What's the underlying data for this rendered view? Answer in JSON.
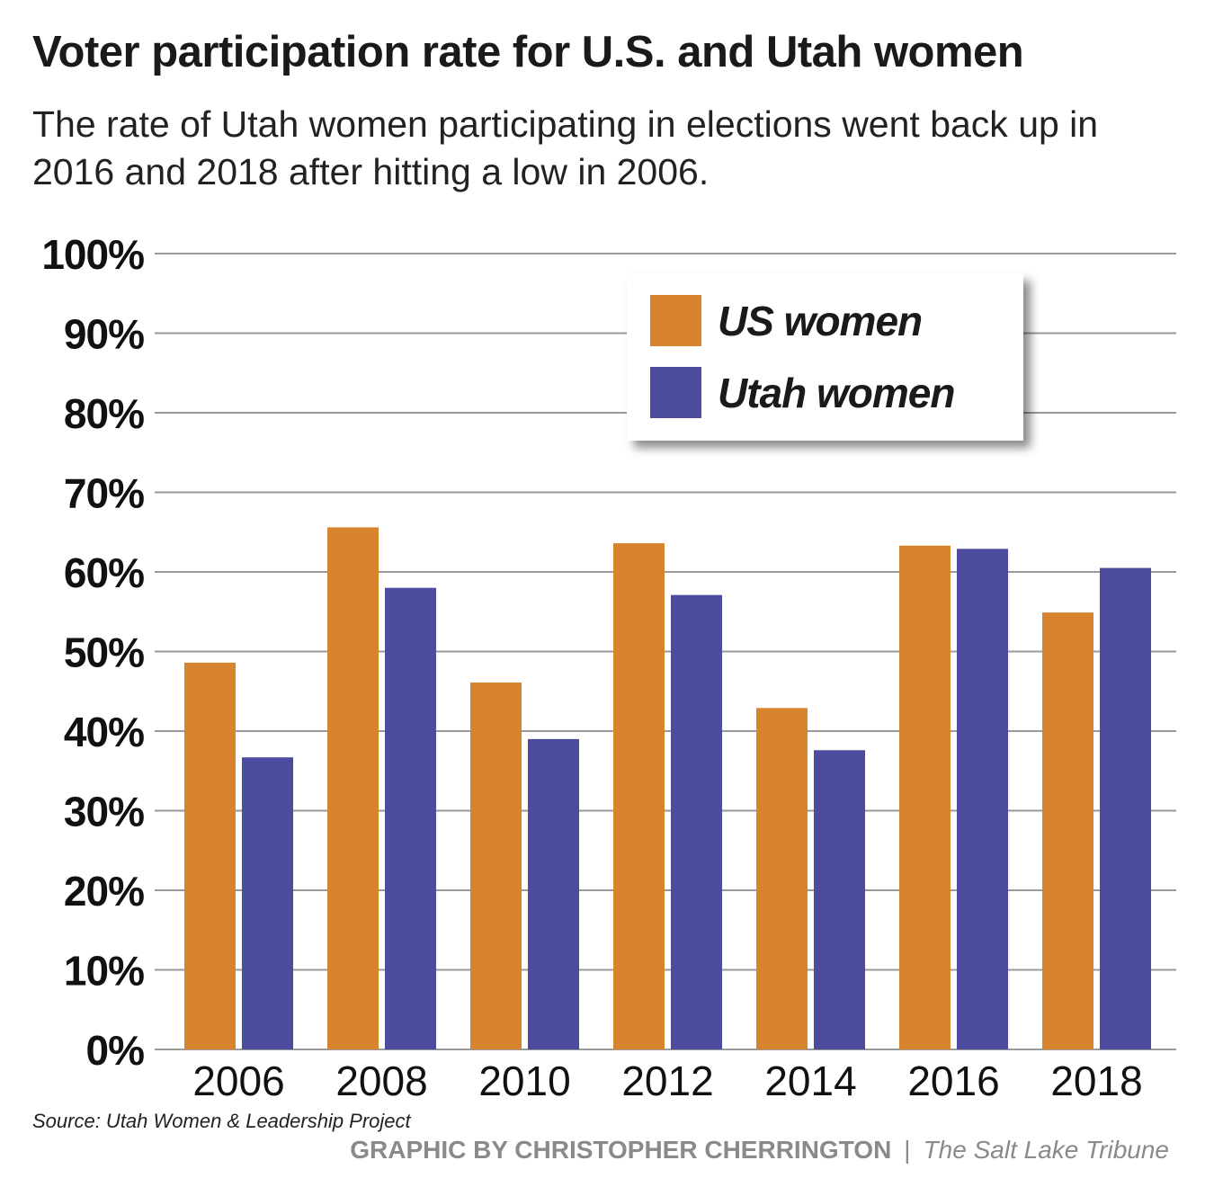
{
  "title": "Voter participation rate for U.S. and Utah women",
  "subtitle": "The rate of Utah women participating in elections went back up in 2016 and 2018 after hitting a low in 2006.",
  "source": "Source: Utah Women & Leadership Project",
  "credit": "GRAPHIC BY CHRISTOPHER CHERRINGTON",
  "separator": "|",
  "publisher": "The Salt Lake Tribune",
  "colors": {
    "us": "#D8832E",
    "utah": "#4C4B9E",
    "grid": "#9a9a9a"
  },
  "chart_data": {
    "type": "bar",
    "categories": [
      "2006",
      "2008",
      "2010",
      "2012",
      "2014",
      "2016",
      "2018"
    ],
    "series": [
      {
        "name": "US women",
        "values": [
          48.6,
          65.6,
          46.1,
          63.6,
          42.9,
          63.3,
          54.9
        ]
      },
      {
        "name": "Utah women",
        "values": [
          36.7,
          58.0,
          39.0,
          57.1,
          37.6,
          62.9,
          60.5
        ]
      }
    ],
    "yticks": [
      "0%",
      "10%",
      "20%",
      "30%",
      "40%",
      "50%",
      "60%",
      "70%",
      "80%",
      "90%",
      "100%"
    ],
    "ylim": [
      0,
      100
    ],
    "grid": true,
    "legend_position": "top-right"
  }
}
